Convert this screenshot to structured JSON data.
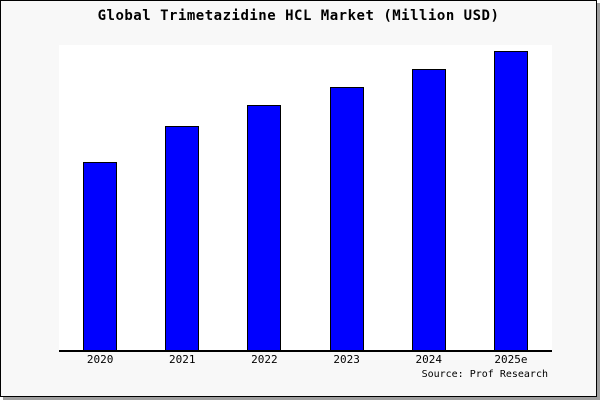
{
  "colors": {
    "figure_background": "#f8f8f8",
    "plot_background": "#ffffff",
    "bar_fill": "#0000ff",
    "bar_edge": "#000000",
    "axis_line": "#000000",
    "text": "#000000",
    "outer_border": "#000000",
    "drop_shadow": "#9e9e9e"
  },
  "chart_data": {
    "type": "bar",
    "title": "Global Trimetazidine HCL Market (Million USD)",
    "categories": [
      "2020",
      "2021",
      "2022",
      "2023",
      "2024",
      "2025e"
    ],
    "values": [
      63,
      75,
      82,
      88,
      94,
      100
    ],
    "values_note": "no y-axis or data labels shown; values estimated from bar heights, indexed so 2025e = 100",
    "series_name": "Market size (Million USD)",
    "xlabel": "",
    "ylabel": "",
    "ylim": [
      0,
      102
    ],
    "grid": false,
    "legend": null,
    "y_axis_shown": false,
    "source_note": "Source: Prof Research",
    "bar_color": "#0000ff",
    "bar_edge_color": "#000000"
  }
}
